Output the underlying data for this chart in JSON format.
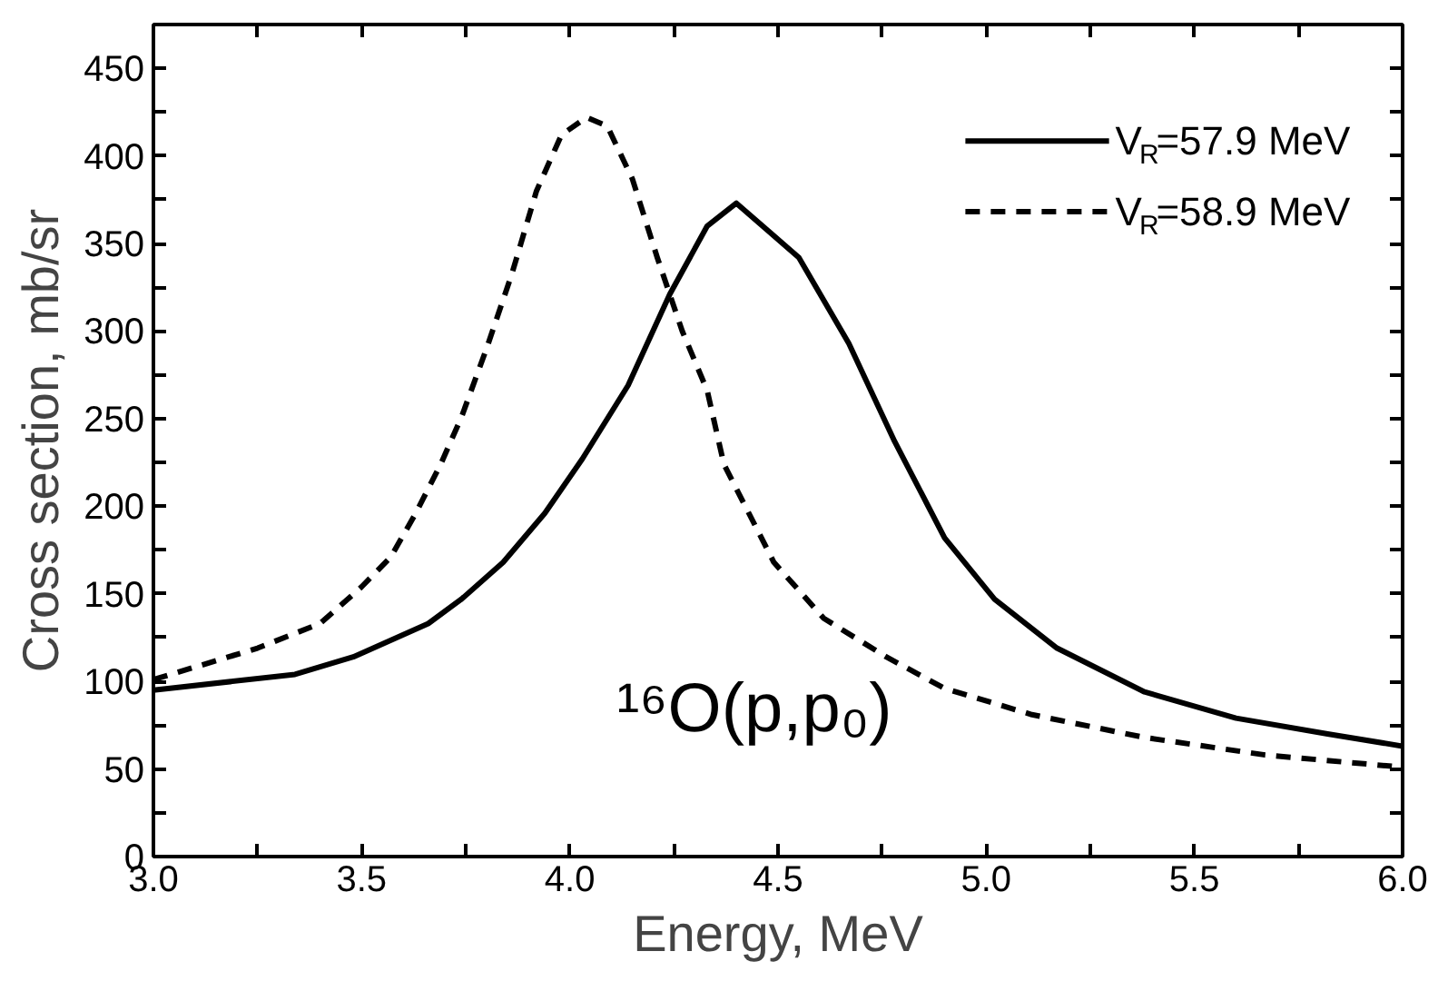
{
  "chart_data": {
    "type": "line",
    "xlabel": "Energy, MeV",
    "ylabel": "Cross section, mb/sr",
    "annotations": [
      "¹⁶O(p,p₀)"
    ],
    "xlim": [
      3.0,
      6.0
    ],
    "ylim": [
      0,
      475
    ],
    "xticks": [
      {
        "value": 3.0,
        "label": "3.0"
      },
      {
        "value": 3.25,
        "label": null
      },
      {
        "value": 3.5,
        "label": "3.5"
      },
      {
        "value": 3.75,
        "label": null
      },
      {
        "value": 4.0,
        "label": "4.0"
      },
      {
        "value": 4.25,
        "label": null
      },
      {
        "value": 4.5,
        "label": "4.5"
      },
      {
        "value": 4.75,
        "label": null
      },
      {
        "value": 5.0,
        "label": "5.0"
      },
      {
        "value": 5.25,
        "label": null
      },
      {
        "value": 5.5,
        "label": "5.5"
      },
      {
        "value": 5.75,
        "label": null
      },
      {
        "value": 6.0,
        "label": "6.0"
      }
    ],
    "yticks": [
      0,
      {
        "value": 25,
        "label": null
      },
      50,
      {
        "value": 75,
        "label": null
      },
      100,
      {
        "value": 125,
        "label": null
      },
      150,
      {
        "value": 175,
        "label": null
      },
      200,
      {
        "value": 225,
        "label": null
      },
      250,
      {
        "value": 275,
        "label": null
      },
      300,
      {
        "value": 325,
        "label": null
      },
      350,
      {
        "value": 375,
        "label": null
      },
      400,
      {
        "value": 425,
        "label": null
      },
      450
    ],
    "grid": false,
    "legend": "top right",
    "marker": "none",
    "series": [
      {
        "name": "V$_{R}$=57.9 MeV",
        "color": "#000000",
        "line_style": "solid",
        "x": [
          3.0,
          3.34,
          3.48,
          3.66,
          3.74,
          3.84,
          3.94,
          4.03,
          4.14,
          4.24,
          4.33,
          4.4,
          4.55,
          4.67,
          4.78,
          4.9,
          5.02,
          5.17,
          5.38,
          5.6,
          5.82,
          6.0
        ],
        "values": [
          95,
          104,
          114,
          133,
          147,
          168,
          196,
          227,
          269,
          321,
          360,
          373,
          342,
          293,
          237,
          182,
          147,
          119,
          94,
          79,
          70,
          63
        ]
      },
      {
        "name": "V$_{R}$=58.9 MeV",
        "color": "#000000",
        "line_style": "dashed",
        "x": [
          3.0,
          3.25,
          3.4,
          3.5,
          3.57,
          3.63,
          3.69,
          3.74,
          3.8,
          3.86,
          3.92,
          3.98,
          4.04,
          4.09,
          4.15,
          4.21,
          4.27,
          4.33,
          4.37,
          4.49,
          4.61,
          4.76,
          4.9,
          5.11,
          5.38,
          5.67,
          6.0
        ],
        "values": [
          101,
          119,
          133,
          154,
          171,
          196,
          224,
          251,
          290,
          332,
          380,
          412,
          422,
          417,
          387,
          342,
          300,
          266,
          224,
          168,
          136,
          114,
          96,
          81,
          68,
          58,
          51
        ]
      }
    ]
  }
}
